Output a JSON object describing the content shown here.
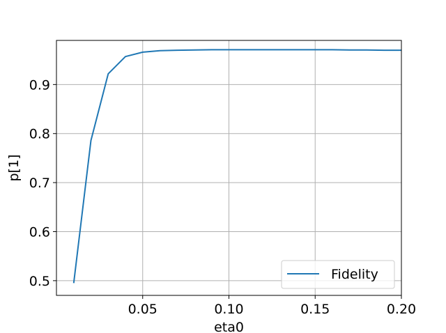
{
  "chart_data": {
    "type": "line",
    "title": "",
    "xlabel": "eta0",
    "ylabel": "p[1]",
    "xlim": [
      0.0,
      0.2
    ],
    "ylim": [
      0.47,
      0.99
    ],
    "xticks": [
      0.05,
      0.1,
      0.15,
      0.2
    ],
    "xtick_labels": [
      "0.05",
      "0.10",
      "0.15",
      "0.20"
    ],
    "yticks": [
      0.5,
      0.6,
      0.7,
      0.8,
      0.9
    ],
    "ytick_labels": [
      "0.5",
      "0.6",
      "0.7",
      "0.8",
      "0.9"
    ],
    "grid": true,
    "legend_position": "bottom-right",
    "series": [
      {
        "name": "Fidelity",
        "color": "#1f77b4",
        "x": [
          0.01,
          0.02,
          0.03,
          0.04,
          0.05,
          0.06,
          0.07,
          0.08,
          0.09,
          0.1,
          0.11,
          0.12,
          0.13,
          0.14,
          0.15,
          0.16,
          0.17,
          0.18,
          0.19,
          0.2
        ],
        "y": [
          0.495,
          0.786,
          0.922,
          0.957,
          0.966,
          0.969,
          0.97,
          0.9705,
          0.971,
          0.971,
          0.971,
          0.971,
          0.971,
          0.971,
          0.971,
          0.971,
          0.9705,
          0.9705,
          0.97,
          0.97
        ]
      }
    ]
  }
}
